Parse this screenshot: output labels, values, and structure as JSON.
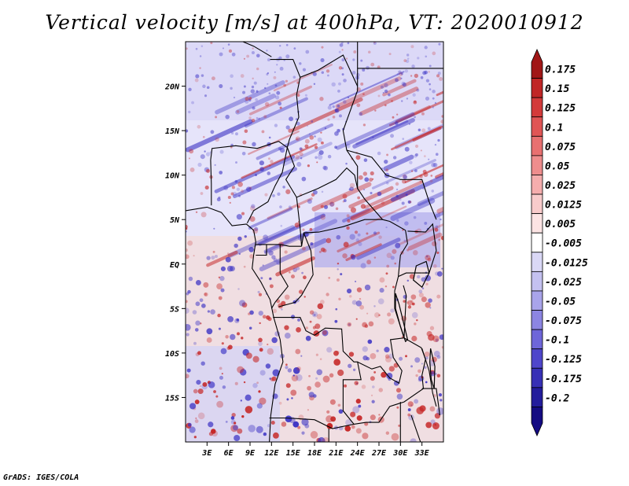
{
  "title": "Vertical velocity [m/s] at 400hPa, VT: 2020010912",
  "credit": "GrADS: IGES/COLA",
  "map": {
    "lon_range": [
      0,
      36
    ],
    "lat_range": [
      -20,
      25
    ],
    "x_ticks": [
      "3E",
      "6E",
      "9E",
      "12E",
      "15E",
      "18E",
      "21E",
      "24E",
      "27E",
      "30E",
      "33E"
    ],
    "x_tick_values": [
      3,
      6,
      9,
      12,
      15,
      18,
      21,
      24,
      27,
      30,
      33
    ],
    "y_ticks": [
      "20N",
      "15N",
      "10N",
      "5N",
      "EQ",
      "5S",
      "10S",
      "15S"
    ],
    "y_tick_values": [
      20,
      15,
      10,
      5,
      0,
      -5,
      -10,
      -15
    ]
  },
  "colorbar": {
    "labels": [
      "0.175",
      "0.15",
      "0.125",
      "0.1",
      "0.075",
      "0.05",
      "0.025",
      "0.0125",
      "0.005",
      "-0.005",
      "-0.0125",
      "-0.025",
      "-0.05",
      "-0.075",
      "-0.1",
      "-0.125",
      "-0.175",
      "-0.2"
    ],
    "colors": [
      "#a11717",
      "#c02626",
      "#d33a3a",
      "#e05555",
      "#e87070",
      "#ee8d8d",
      "#f5adad",
      "#f8cbcb",
      "#fce4e4",
      "#ffffff",
      "#dad8f6",
      "#c4c1f0",
      "#a9a4ea",
      "#8c85e2",
      "#6e66d9",
      "#4f46cb",
      "#3730b6",
      "#231c9c",
      "#140b82"
    ]
  },
  "colors": {
    "positive": "#c62828",
    "negative": "#3b32c4",
    "border": "#000000"
  }
}
